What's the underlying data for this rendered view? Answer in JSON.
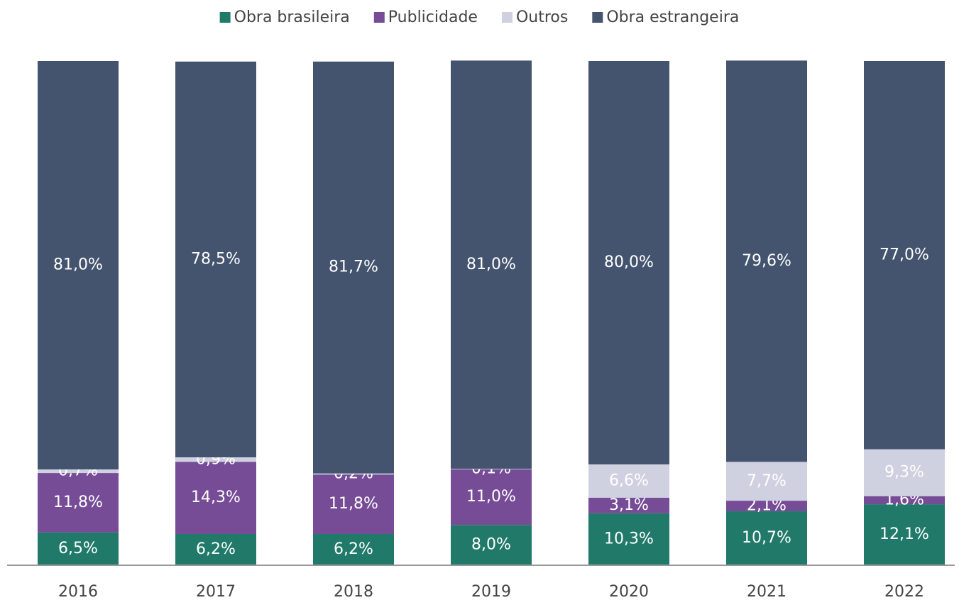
{
  "chart_data": {
    "type": "stacked_bar",
    "categories": [
      "2016",
      "2017",
      "2018",
      "2019",
      "2020",
      "2021",
      "2022"
    ],
    "ylim": [
      0,
      100
    ],
    "series": [
      {
        "name": "Obra brasileira",
        "color": "#217a69",
        "values": [
          6.5,
          6.2,
          6.2,
          8.0,
          10.3,
          10.7,
          12.1
        ],
        "value_labels": [
          "6,5%",
          "6,2%",
          "6,2%",
          "8,0%",
          "10,3%",
          "10,7%",
          "12,1%"
        ]
      },
      {
        "name": "Publicidade",
        "color": "#774c96",
        "values": [
          11.8,
          14.3,
          11.8,
          11.0,
          3.1,
          2.1,
          1.6
        ],
        "value_labels": [
          "11,8%",
          "14,3%",
          "11,8%",
          "11,0%",
          "3,1%",
          "2,1%",
          "1,6%"
        ]
      },
      {
        "name": "Outros",
        "color": "#cfd0e0",
        "values": [
          0.7,
          0.9,
          0.2,
          0.1,
          6.6,
          7.7,
          9.3
        ],
        "value_labels": [
          "0,7%",
          "0,9%",
          "0,2%",
          "0,1%",
          "6,6%",
          "7,7%",
          "9,3%"
        ]
      },
      {
        "name": "Obra estrangeira",
        "color": "#44546f",
        "values": [
          81.0,
          78.5,
          81.7,
          81.0,
          80.0,
          79.6,
          77.0
        ],
        "value_labels": [
          "81,0%",
          "78,5%",
          "81,7%",
          "81,0%",
          "80,0%",
          "79,6%",
          "77,0%"
        ]
      }
    ]
  }
}
